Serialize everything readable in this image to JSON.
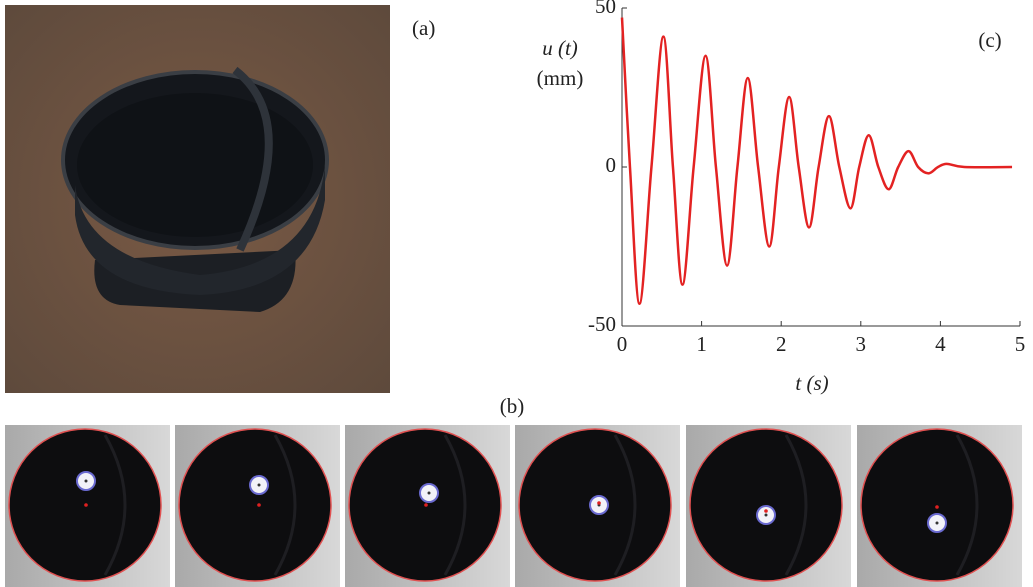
{
  "panel_labels": {
    "a": "(a)",
    "b": "(b)"
  },
  "chart_data": {
    "type": "line",
    "panel_label": "(c)",
    "ylabel": "u (t)",
    "yunit": "(mm)",
    "xlabel": "t (s)",
    "x": [
      0,
      0.1,
      0.22,
      0.37,
      0.52,
      0.64,
      0.76,
      0.9,
      1.05,
      1.18,
      1.32,
      1.45,
      1.58,
      1.71,
      1.85,
      1.97,
      2.1,
      2.22,
      2.35,
      2.47,
      2.6,
      2.73,
      2.87,
      2.98,
      3.1,
      3.22,
      3.35,
      3.47,
      3.6,
      3.72,
      3.85,
      3.97,
      4.08,
      4.3,
      4.9
    ],
    "values": [
      47,
      0,
      -43,
      0,
      41,
      0,
      -37,
      0,
      35,
      0,
      -31,
      0,
      28,
      0,
      -25,
      0,
      22,
      0,
      -19,
      0,
      16,
      0,
      -13,
      0,
      10,
      0,
      -7,
      0,
      5,
      0,
      -2,
      0,
      1,
      0,
      0
    ],
    "color": "#e32222",
    "xlim": [
      0,
      5
    ],
    "xticks": [
      0,
      1,
      2,
      3,
      4,
      5
    ],
    "ylim": [
      -50,
      50
    ],
    "yticks": [
      -50,
      0,
      50
    ]
  }
}
